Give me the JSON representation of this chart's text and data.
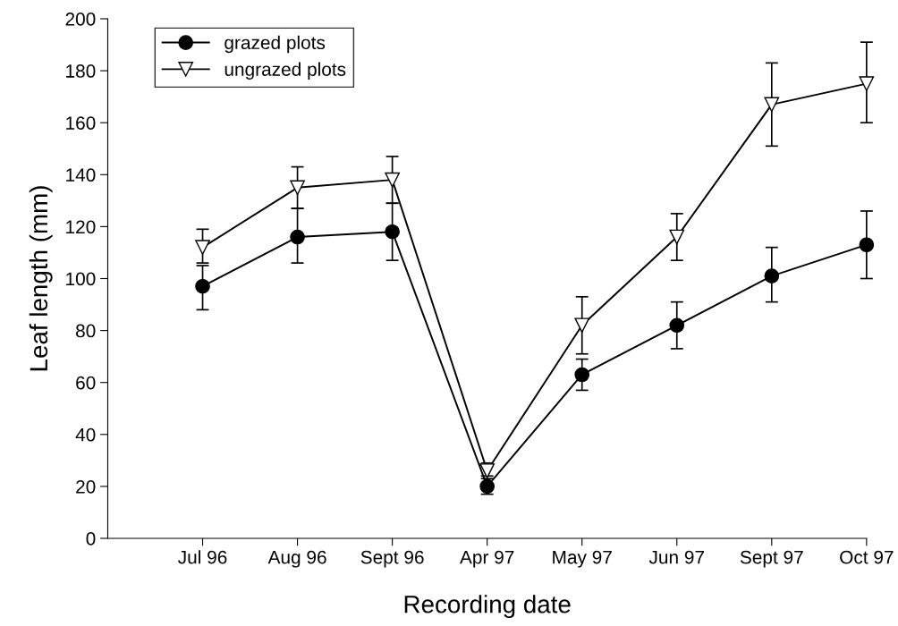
{
  "chart_data": {
    "type": "line",
    "xlabel": "Recording date",
    "ylabel": "Leaf length (mm)",
    "categories": [
      "Jul 96",
      "Aug 96",
      "Sept 96",
      "Apr 97",
      "May 97",
      "Jun 97",
      "Sept 97",
      "Oct 97"
    ],
    "series": [
      {
        "name": "grazed plots",
        "color": "#000000",
        "marker": "circle",
        "values": [
          97,
          116,
          118,
          20,
          63,
          82,
          101,
          113
        ],
        "errors": [
          [
            88,
            105
          ],
          [
            106,
            127
          ],
          [
            107,
            129
          ],
          [
            17,
            23
          ],
          [
            57,
            69
          ],
          [
            73,
            91
          ],
          [
            91,
            112
          ],
          [
            100,
            126
          ]
        ]
      },
      {
        "name": "ungrazed plots",
        "color": "#ffffff",
        "marker": "triangle",
        "values": [
          112,
          135,
          138,
          26,
          82,
          116,
          167,
          175
        ],
        "errors": [
          [
            106,
            119
          ],
          [
            127,
            143
          ],
          [
            129,
            147
          ],
          [
            24,
            29
          ],
          [
            71,
            93
          ],
          [
            107,
            125
          ],
          [
            151,
            183
          ],
          [
            160,
            191
          ]
        ]
      }
    ],
    "ylim": [
      0,
      200
    ],
    "yticks": [
      0,
      20,
      40,
      60,
      80,
      100,
      120,
      140,
      160,
      180,
      200
    ],
    "grid": false,
    "legend": "top left",
    "line_style": "solid"
  }
}
